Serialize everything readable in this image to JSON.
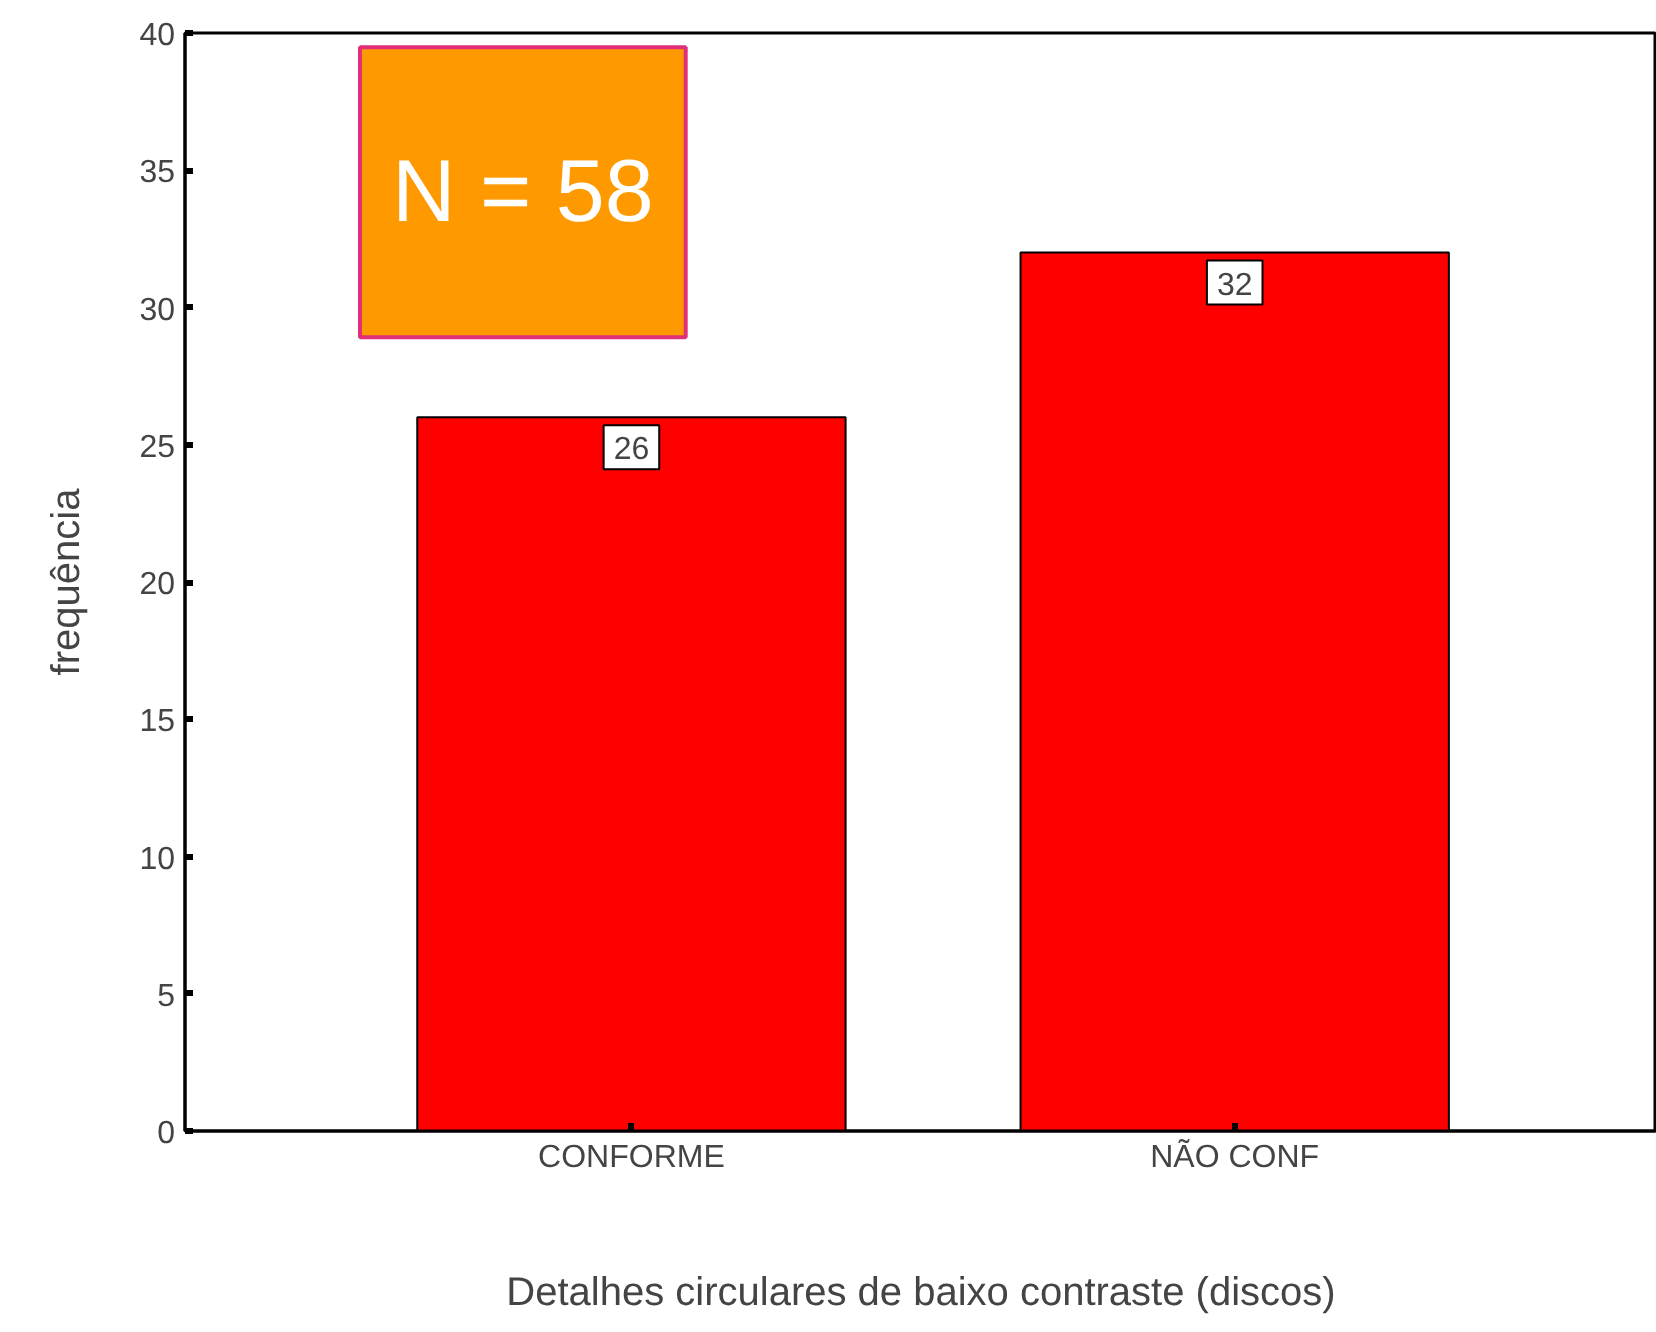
{
  "chart_data": {
    "type": "bar",
    "xlabel": "Detalhes circulares de baixo contraste (discos)",
    "ylabel": "frequência",
    "categories": [
      "CONFORME",
      "NÃO CONF"
    ],
    "values": [
      26,
      32
    ],
    "color": "#ff0000",
    "ylim": [
      0,
      40
    ],
    "yticks": [
      0,
      5,
      10,
      15,
      20,
      25,
      30,
      35,
      40
    ],
    "grid": false,
    "data_labels": true,
    "annotations": [
      "N = 58"
    ]
  }
}
